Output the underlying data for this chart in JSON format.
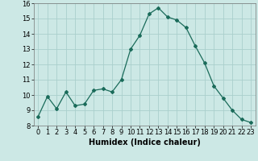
{
  "x": [
    0,
    1,
    2,
    3,
    4,
    5,
    6,
    7,
    8,
    9,
    10,
    11,
    12,
    13,
    14,
    15,
    16,
    17,
    18,
    19,
    20,
    21,
    22,
    23
  ],
  "y": [
    8.6,
    9.9,
    9.1,
    10.2,
    9.3,
    9.4,
    10.3,
    10.4,
    10.2,
    11.0,
    13.0,
    13.9,
    15.3,
    15.7,
    15.1,
    14.9,
    14.4,
    13.2,
    12.1,
    10.6,
    9.8,
    9.0,
    8.4,
    8.2
  ],
  "line_color": "#1a6b5a",
  "marker": "D",
  "marker_size": 2,
  "bg_color": "#cce8e5",
  "grid_color": "#aacfcc",
  "xlabel": "Humidex (Indice chaleur)",
  "ylim": [
    8,
    16
  ],
  "xlim": [
    -0.5,
    23.5
  ],
  "yticks": [
    8,
    9,
    10,
    11,
    12,
    13,
    14,
    15,
    16
  ],
  "xticks": [
    0,
    1,
    2,
    3,
    4,
    5,
    6,
    7,
    8,
    9,
    10,
    11,
    12,
    13,
    14,
    15,
    16,
    17,
    18,
    19,
    20,
    21,
    22,
    23
  ],
  "xlabel_fontsize": 7,
  "tick_fontsize": 6,
  "linewidth": 0.9
}
